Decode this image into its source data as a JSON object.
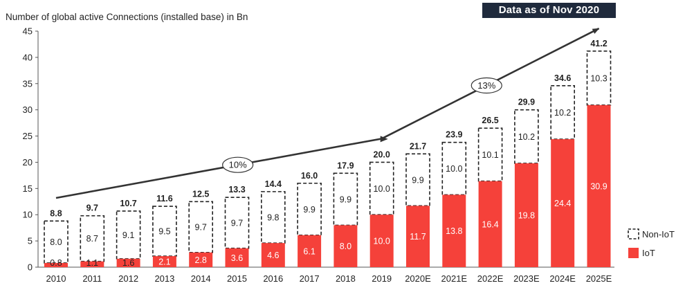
{
  "badge": "Data as of Nov 2020",
  "chart_data": {
    "type": "bar",
    "stacked": true,
    "title": "",
    "ylabel": "Number of global active Connections (installed base) in Bn",
    "xlabel": "",
    "ylim": [
      0,
      45
    ],
    "yticks": [
      0,
      5,
      10,
      15,
      20,
      25,
      30,
      35,
      40,
      45
    ],
    "categories": [
      "2010",
      "2011",
      "2012",
      "2013",
      "2014",
      "2015",
      "2016",
      "2017",
      "2018",
      "2019",
      "2020E",
      "2021E",
      "2022E",
      "2023E",
      "2024E",
      "2025E"
    ],
    "series": [
      {
        "name": "IoT",
        "color": "#f5413a",
        "values": [
          0.8,
          1.1,
          1.6,
          2.1,
          2.8,
          3.6,
          4.6,
          6.1,
          8.0,
          10.0,
          11.7,
          13.8,
          16.4,
          19.8,
          24.4,
          30.9
        ]
      },
      {
        "name": "Non-IoT",
        "color": "#ffffff",
        "values": [
          8.0,
          8.7,
          9.1,
          9.5,
          9.7,
          9.7,
          9.8,
          9.9,
          9.9,
          10.0,
          9.9,
          10.0,
          10.1,
          10.2,
          10.2,
          10.3
        ]
      }
    ],
    "totals": [
      8.8,
      9.7,
      10.7,
      11.6,
      12.5,
      13.3,
      14.4,
      16.0,
      17.9,
      20.0,
      21.7,
      23.9,
      26.5,
      29.9,
      34.6,
      41.2
    ],
    "cagr_annotations": [
      {
        "label": "10%",
        "from_category": "2010",
        "to_category": "2019"
      },
      {
        "label": "13%",
        "from_category": "2019",
        "to_category": "2025E"
      }
    ],
    "legend": {
      "position": "bottom-right",
      "entries": [
        "Non-IoT",
        "IoT"
      ]
    },
    "grid": false
  }
}
